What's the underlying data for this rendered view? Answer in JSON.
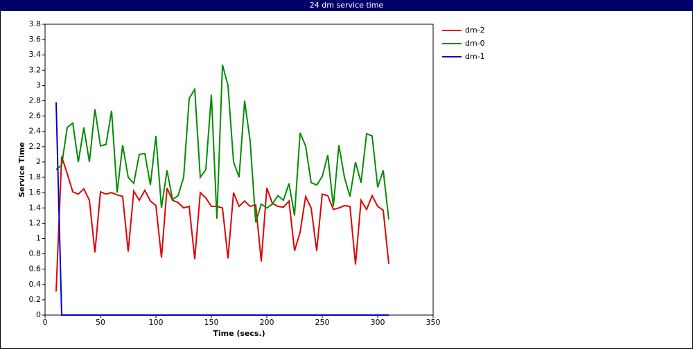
{
  "chart_data": {
    "type": "line",
    "title": "24 dm service time",
    "x_label": "Time (secs.)",
    "y_label": "Service Time",
    "x": [
      10,
      15,
      20,
      25,
      30,
      35,
      40,
      45,
      50,
      55,
      60,
      65,
      70,
      75,
      80,
      85,
      90,
      95,
      100,
      105,
      110,
      115,
      120,
      125,
      130,
      135,
      140,
      145,
      150,
      155,
      160,
      165,
      170,
      175,
      180,
      185,
      190,
      195,
      200,
      205,
      210,
      215,
      220,
      225,
      230,
      235,
      240,
      245,
      250,
      255,
      260,
      265,
      270,
      275,
      280,
      285,
      290,
      295,
      300,
      305,
      310
    ],
    "series": [
      {
        "name": "dm-2",
        "color": "#e00000",
        "values": [
          0.31,
          2.07,
          1.85,
          1.61,
          1.58,
          1.65,
          1.5,
          0.82,
          1.61,
          1.58,
          1.6,
          1.57,
          1.55,
          0.83,
          1.62,
          1.5,
          1.63,
          1.49,
          1.43,
          0.75,
          1.66,
          1.5,
          1.47,
          1.4,
          1.42,
          0.73,
          1.6,
          1.53,
          1.42,
          1.42,
          1.4,
          0.74,
          1.6,
          1.42,
          1.49,
          1.42,
          1.44,
          0.7,
          1.66,
          1.46,
          1.42,
          1.41,
          1.49,
          0.84,
          1.08,
          1.55,
          1.4,
          0.84,
          1.58,
          1.56,
          1.38,
          1.4,
          1.43,
          1.42,
          0.66,
          1.5,
          1.38,
          1.56,
          1.42,
          1.37,
          0.67
        ]
      },
      {
        "name": "dm-0",
        "color": "#008c00",
        "values": [
          1.9,
          1.96,
          2.45,
          2.51,
          2.0,
          2.45,
          2.0,
          2.69,
          2.21,
          2.23,
          2.67,
          1.6,
          2.22,
          1.8,
          1.72,
          2.1,
          2.11,
          1.7,
          2.34,
          1.4,
          1.89,
          1.51,
          1.56,
          1.8,
          2.83,
          2.95,
          1.8,
          1.9,
          2.88,
          1.26,
          3.27,
          3.0,
          2.0,
          1.8,
          2.8,
          2.27,
          1.21,
          1.45,
          1.4,
          1.45,
          1.56,
          1.5,
          1.72,
          1.3,
          2.38,
          2.21,
          1.73,
          1.7,
          1.81,
          2.09,
          1.42,
          2.22,
          1.8,
          1.55,
          2.0,
          1.73,
          2.37,
          2.34,
          1.67,
          1.89,
          1.25
        ]
      },
      {
        "name": "dm-1",
        "color": "#0000c8",
        "values": [
          2.78,
          0,
          0,
          0,
          0,
          0,
          0,
          0,
          0,
          0,
          0,
          0,
          0,
          0,
          0,
          0,
          0,
          0,
          0,
          0,
          0,
          0,
          0,
          0,
          0,
          0,
          0,
          0,
          0,
          0,
          0,
          0,
          0,
          0,
          0,
          0,
          0,
          0,
          0,
          0,
          0,
          0,
          0,
          0,
          0,
          0,
          0,
          0,
          0,
          0,
          0,
          0,
          0,
          0,
          0,
          0,
          0,
          0,
          0,
          0,
          0
        ]
      }
    ],
    "xlim": [
      0,
      350
    ],
    "xticks": [
      0,
      50,
      100,
      150,
      200,
      250,
      300,
      350
    ],
    "ylim": [
      0,
      3.8
    ],
    "yticks": [
      0,
      0.2,
      0.4,
      0.6,
      0.8,
      1,
      1.2,
      1.4,
      1.6,
      1.8,
      2,
      2.2,
      2.4,
      2.6,
      2.8,
      3,
      3.2,
      3.4,
      3.6,
      3.8
    ],
    "grid": false,
    "legend": "right"
  }
}
